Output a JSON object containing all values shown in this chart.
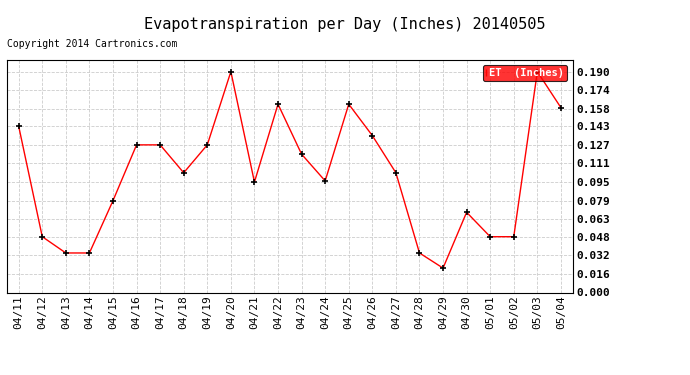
{
  "title": "Evapotranspiration per Day (Inches) 20140505",
  "copyright_text": "Copyright 2014 Cartronics.com",
  "legend_label": "ET  (Inches)",
  "dates": [
    "04/11",
    "04/12",
    "04/13",
    "04/14",
    "04/15",
    "04/16",
    "04/17",
    "04/18",
    "04/19",
    "04/20",
    "04/21",
    "04/22",
    "04/23",
    "04/24",
    "04/25",
    "04/26",
    "04/27",
    "04/28",
    "04/29",
    "04/30",
    "05/01",
    "05/02",
    "05/03",
    "05/04"
  ],
  "values": [
    0.143,
    0.048,
    0.034,
    0.034,
    0.079,
    0.127,
    0.127,
    0.103,
    0.127,
    0.19,
    0.095,
    0.162,
    0.119,
    0.096,
    0.162,
    0.135,
    0.103,
    0.034,
    0.021,
    0.069,
    0.048,
    0.048,
    0.19,
    0.159
  ],
  "yticks": [
    0.0,
    0.016,
    0.032,
    0.048,
    0.063,
    0.079,
    0.095,
    0.111,
    0.127,
    0.143,
    0.158,
    0.174,
    0.19
  ],
  "ylim": [
    0.0,
    0.2
  ],
  "line_color": "red",
  "marker": "+",
  "marker_color": "black",
  "grid_color": "#cccccc",
  "bg_color": "white",
  "legend_bg": "red",
  "legend_text_color": "white",
  "title_fontsize": 11,
  "copyright_fontsize": 7,
  "tick_fontsize": 8,
  "ytick_fontweight": "bold"
}
